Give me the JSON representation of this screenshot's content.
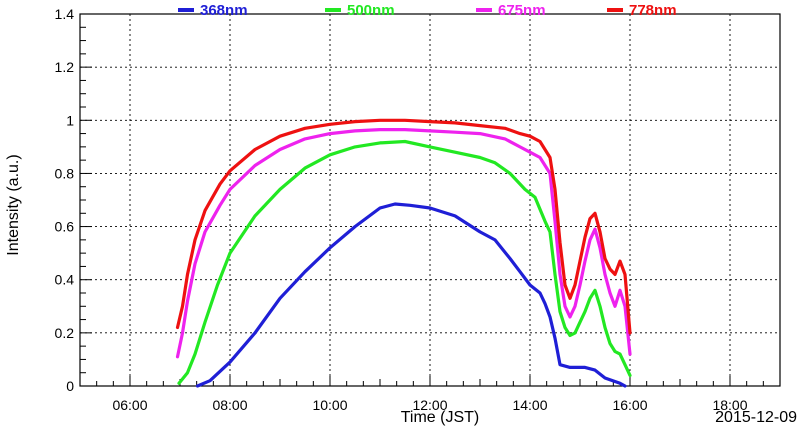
{
  "chart_data": {
    "type": "line",
    "title": "",
    "xlabel": "Time (JST)",
    "ylabel": "Intensity (a.u.)",
    "date_label": "2015-12-09",
    "xlim": [
      5.0,
      19.0
    ],
    "ylim": [
      0,
      1.4
    ],
    "xticks": [
      {
        "v": 6,
        "label": "06:00"
      },
      {
        "v": 8,
        "label": "08:00"
      },
      {
        "v": 10,
        "label": "10:00"
      },
      {
        "v": 12,
        "label": "12:00"
      },
      {
        "v": 14,
        "label": "14:00"
      },
      {
        "v": 16,
        "label": "16:00"
      },
      {
        "v": 18,
        "label": "18:00"
      }
    ],
    "yticks": [
      {
        "v": 0,
        "label": "0"
      },
      {
        "v": 0.2,
        "label": "0.2"
      },
      {
        "v": 0.4,
        "label": "0.4"
      },
      {
        "v": 0.6,
        "label": "0.6"
      },
      {
        "v": 0.8,
        "label": "0.8"
      },
      {
        "v": 1.0,
        "label": "1"
      },
      {
        "v": 1.2,
        "label": "1.2"
      },
      {
        "v": 1.4,
        "label": "1.4"
      }
    ],
    "grid": true,
    "legend": "top",
    "series": [
      {
        "name": "368nm",
        "color": "#1f1fd6",
        "points": [
          [
            7.35,
            0.0
          ],
          [
            7.6,
            0.02
          ],
          [
            8.0,
            0.09
          ],
          [
            8.5,
            0.2
          ],
          [
            9.0,
            0.33
          ],
          [
            9.5,
            0.43
          ],
          [
            10.0,
            0.52
          ],
          [
            10.5,
            0.6
          ],
          [
            11.0,
            0.67
          ],
          [
            11.3,
            0.685
          ],
          [
            11.6,
            0.68
          ],
          [
            12.0,
            0.67
          ],
          [
            12.5,
            0.64
          ],
          [
            13.0,
            0.58
          ],
          [
            13.3,
            0.55
          ],
          [
            13.6,
            0.48
          ],
          [
            13.8,
            0.43
          ],
          [
            14.0,
            0.38
          ],
          [
            14.2,
            0.35
          ],
          [
            14.3,
            0.31
          ],
          [
            14.4,
            0.26
          ],
          [
            14.5,
            0.18
          ],
          [
            14.6,
            0.08
          ],
          [
            14.8,
            0.07
          ],
          [
            15.1,
            0.07
          ],
          [
            15.3,
            0.06
          ],
          [
            15.5,
            0.03
          ],
          [
            15.8,
            0.01
          ],
          [
            15.9,
            0.0
          ]
        ]
      },
      {
        "name": "500nm",
        "color": "#22e822",
        "points": [
          [
            6.98,
            0.01
          ],
          [
            7.15,
            0.05
          ],
          [
            7.3,
            0.12
          ],
          [
            7.5,
            0.24
          ],
          [
            7.75,
            0.38
          ],
          [
            8.0,
            0.5
          ],
          [
            8.5,
            0.64
          ],
          [
            9.0,
            0.74
          ],
          [
            9.5,
            0.82
          ],
          [
            10.0,
            0.87
          ],
          [
            10.5,
            0.9
          ],
          [
            11.0,
            0.915
          ],
          [
            11.5,
            0.92
          ],
          [
            12.0,
            0.9
          ],
          [
            12.5,
            0.88
          ],
          [
            13.0,
            0.86
          ],
          [
            13.3,
            0.84
          ],
          [
            13.6,
            0.8
          ],
          [
            13.9,
            0.74
          ],
          [
            14.1,
            0.71
          ],
          [
            14.3,
            0.62
          ],
          [
            14.4,
            0.58
          ],
          [
            14.5,
            0.42
          ],
          [
            14.6,
            0.28
          ],
          [
            14.7,
            0.22
          ],
          [
            14.8,
            0.19
          ],
          [
            14.9,
            0.2
          ],
          [
            15.0,
            0.24
          ],
          [
            15.1,
            0.28
          ],
          [
            15.2,
            0.33
          ],
          [
            15.3,
            0.36
          ],
          [
            15.4,
            0.3
          ],
          [
            15.5,
            0.22
          ],
          [
            15.6,
            0.16
          ],
          [
            15.7,
            0.13
          ],
          [
            15.8,
            0.12
          ],
          [
            15.9,
            0.08
          ],
          [
            16.0,
            0.04
          ]
        ]
      },
      {
        "name": "675nm",
        "color": "#ee22ee",
        "points": [
          [
            6.95,
            0.11
          ],
          [
            7.05,
            0.2
          ],
          [
            7.15,
            0.32
          ],
          [
            7.3,
            0.46
          ],
          [
            7.5,
            0.58
          ],
          [
            7.8,
            0.68
          ],
          [
            8.0,
            0.74
          ],
          [
            8.5,
            0.83
          ],
          [
            9.0,
            0.89
          ],
          [
            9.5,
            0.93
          ],
          [
            10.0,
            0.95
          ],
          [
            10.5,
            0.96
          ],
          [
            11.0,
            0.965
          ],
          [
            11.5,
            0.965
          ],
          [
            12.0,
            0.96
          ],
          [
            12.5,
            0.955
          ],
          [
            13.0,
            0.95
          ],
          [
            13.5,
            0.93
          ],
          [
            13.8,
            0.9
          ],
          [
            14.0,
            0.88
          ],
          [
            14.2,
            0.86
          ],
          [
            14.4,
            0.8
          ],
          [
            14.5,
            0.62
          ],
          [
            14.6,
            0.42
          ],
          [
            14.7,
            0.3
          ],
          [
            14.8,
            0.26
          ],
          [
            14.9,
            0.3
          ],
          [
            15.0,
            0.38
          ],
          [
            15.1,
            0.47
          ],
          [
            15.2,
            0.55
          ],
          [
            15.3,
            0.59
          ],
          [
            15.4,
            0.52
          ],
          [
            15.5,
            0.42
          ],
          [
            15.6,
            0.35
          ],
          [
            15.7,
            0.3
          ],
          [
            15.8,
            0.36
          ],
          [
            15.9,
            0.3
          ],
          [
            16.0,
            0.12
          ]
        ]
      },
      {
        "name": "778nm",
        "color": "#ee1111",
        "points": [
          [
            6.95,
            0.22
          ],
          [
            7.05,
            0.3
          ],
          [
            7.15,
            0.42
          ],
          [
            7.3,
            0.55
          ],
          [
            7.5,
            0.66
          ],
          [
            7.8,
            0.76
          ],
          [
            8.0,
            0.81
          ],
          [
            8.5,
            0.89
          ],
          [
            9.0,
            0.94
          ],
          [
            9.5,
            0.97
          ],
          [
            10.0,
            0.985
          ],
          [
            10.5,
            0.995
          ],
          [
            11.0,
            1.0
          ],
          [
            11.5,
            1.0
          ],
          [
            12.0,
            0.995
          ],
          [
            12.5,
            0.99
          ],
          [
            13.0,
            0.98
          ],
          [
            13.5,
            0.97
          ],
          [
            13.8,
            0.95
          ],
          [
            14.0,
            0.94
          ],
          [
            14.2,
            0.92
          ],
          [
            14.4,
            0.86
          ],
          [
            14.5,
            0.74
          ],
          [
            14.6,
            0.54
          ],
          [
            14.7,
            0.38
          ],
          [
            14.8,
            0.33
          ],
          [
            14.9,
            0.38
          ],
          [
            15.0,
            0.47
          ],
          [
            15.1,
            0.56
          ],
          [
            15.2,
            0.63
          ],
          [
            15.3,
            0.65
          ],
          [
            15.4,
            0.58
          ],
          [
            15.5,
            0.48
          ],
          [
            15.6,
            0.44
          ],
          [
            15.7,
            0.42
          ],
          [
            15.8,
            0.47
          ],
          [
            15.9,
            0.42
          ],
          [
            16.0,
            0.2
          ]
        ]
      }
    ]
  }
}
